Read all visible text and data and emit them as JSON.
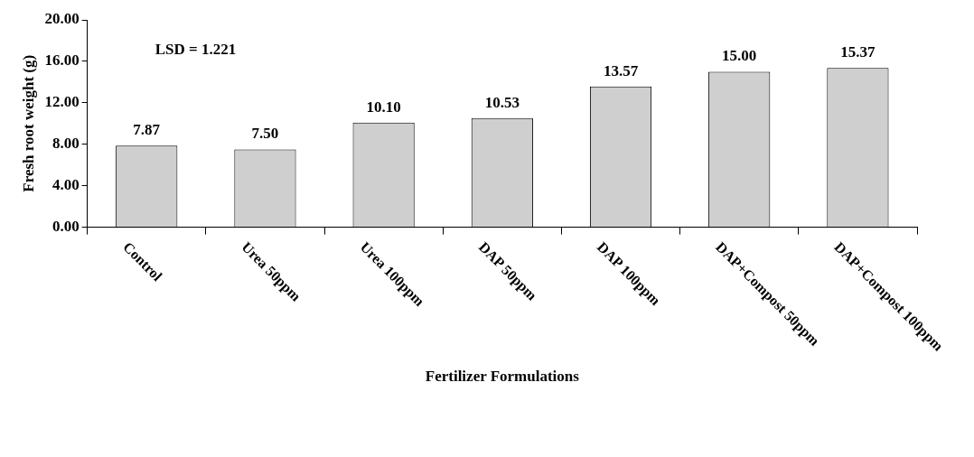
{
  "chart_data": {
    "type": "bar",
    "xlabel": "Fertilizer Formulations",
    "ylabel": "Fresh root weight (g)",
    "categories": [
      "Control",
      "Urea 50ppm",
      "Urea 100ppm",
      "DAP 50ppm",
      "DAP 100ppm",
      "DAP+Compost 50ppm",
      "DAP+Compost 100ppm"
    ],
    "values": [
      7.87,
      7.5,
      10.1,
      10.53,
      13.57,
      15.0,
      15.37
    ],
    "value_labels": [
      "7.87",
      "7.50",
      "10.10",
      "10.53",
      "13.57",
      "15.00",
      "15.37"
    ],
    "color": "#cfcfcf",
    "ylim": [
      0,
      20
    ],
    "yticks": [
      {
        "value": 0,
        "label": "0.00"
      },
      {
        "value": 4,
        "label": "4.00"
      },
      {
        "value": 8,
        "label": "8.00"
      },
      {
        "value": 12,
        "label": "12.00"
      },
      {
        "value": 16,
        "label": "16.00"
      },
      {
        "value": 20,
        "label": "20.00"
      }
    ],
    "annotations": [
      "LSD = 1.221"
    ]
  }
}
